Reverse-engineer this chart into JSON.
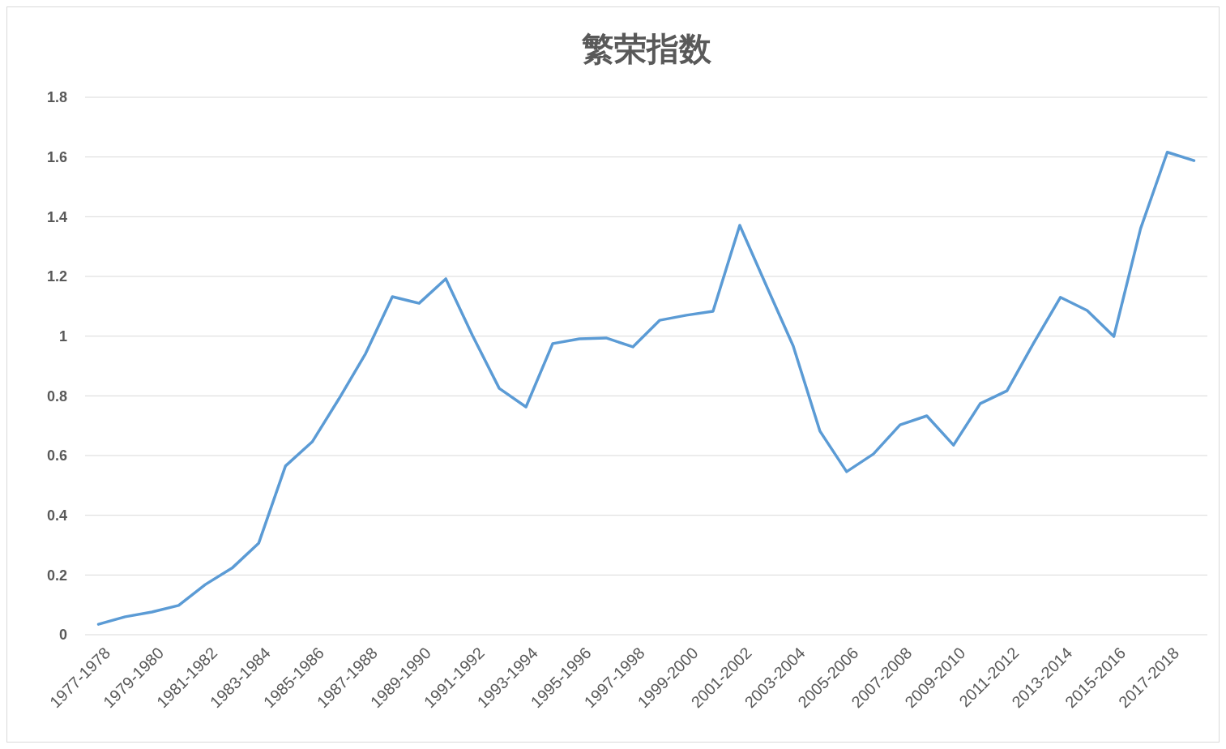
{
  "chart_data": {
    "type": "line",
    "title": "繁荣指数",
    "categories": [
      "1977-1978",
      null,
      "1979-1980",
      null,
      "1981-1982",
      null,
      "1983-1984",
      null,
      "1985-1986",
      null,
      "1987-1988",
      null,
      "1989-1990",
      null,
      "1991-1992",
      null,
      "1993-1994",
      null,
      "1995-1996",
      null,
      "1997-1998",
      null,
      "1999-2000",
      null,
      "2001-2002",
      null,
      "2003-2004",
      null,
      "2005-2006",
      null,
      "2007-2008",
      null,
      "2009-2010",
      null,
      "2011-2012",
      null,
      "2013-2014",
      null,
      "2015-2016",
      null,
      "2017-2018",
      null
    ],
    "series": [
      {
        "color": "#5b9bd5",
        "values": [
          0.035,
          0.06,
          0.076,
          0.098,
          0.168,
          0.223,
          0.307,
          0.565,
          0.646,
          0.79,
          0.942,
          1.132,
          1.11,
          1.192,
          1.002,
          0.825,
          0.763,
          0.975,
          0.991,
          0.994,
          0.964,
          1.053,
          1.07,
          1.083,
          1.371,
          1.168,
          0.967,
          0.682,
          0.546,
          0.605,
          0.703,
          0.733,
          0.635,
          0.774,
          0.817,
          0.977,
          1.13,
          1.086,
          0.999,
          1.36,
          1.616,
          1.588
        ]
      }
    ],
    "ylim": [
      0,
      1.8
    ],
    "yticks": [
      0,
      0.2,
      0.4,
      0.6,
      0.8,
      1,
      1.2,
      1.4,
      1.6,
      1.8
    ],
    "grid": "y",
    "marker": "none",
    "line_style": "solid"
  }
}
